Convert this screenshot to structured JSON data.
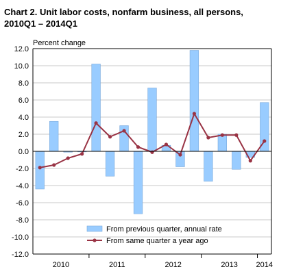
{
  "chart_data": {
    "type": "bar",
    "title_line1": "Chart  2. Unit labor costs, nonfarm business, all persons,",
    "title_line2": "2010Q1 – 2014Q1",
    "ylabel": "Percent change",
    "ylim": [
      -12,
      12
    ],
    "yticks": [
      "12.0",
      "10.0",
      "8.0",
      "6.0",
      "4.0",
      "2.0",
      "0.0",
      "-2.0",
      "-4.0",
      "-6.0",
      "-8.0",
      "-10.0",
      "-12.0"
    ],
    "ytick_values": [
      12,
      10,
      8,
      6,
      4,
      2,
      0,
      -2,
      -4,
      -6,
      -8,
      -10,
      -12
    ],
    "x": [
      "2010Q1",
      "2010Q2",
      "2010Q3",
      "2010Q4",
      "2011Q1",
      "2011Q2",
      "2011Q3",
      "2011Q4",
      "2012Q1",
      "2012Q2",
      "2012Q3",
      "2012Q4",
      "2013Q1",
      "2013Q2",
      "2013Q3",
      "2013Q4",
      "2014Q1"
    ],
    "year_labels": [
      {
        "label": "2010",
        "from": 0,
        "to": 3
      },
      {
        "label": "2011",
        "from": 4,
        "to": 7
      },
      {
        "label": "2012",
        "from": 8,
        "to": 11
      },
      {
        "label": "2013",
        "from": 12,
        "to": 15
      },
      {
        "label": "2014",
        "from": 16,
        "to": 16
      }
    ],
    "series": [
      {
        "name": "From previous quarter, annual rate",
        "kind": "bar",
        "color": "#99ccff",
        "values": [
          -4.4,
          3.5,
          -0.1,
          0.0,
          10.2,
          -2.9,
          3.0,
          -7.3,
          7.4,
          0.7,
          -1.8,
          11.8,
          -3.5,
          2.0,
          -2.1,
          -0.7,
          5.7
        ]
      },
      {
        "name": "From same quarter a year ago",
        "kind": "line",
        "color": "#993344",
        "values": [
          -1.9,
          -1.6,
          -0.8,
          -0.3,
          3.3,
          1.7,
          2.4,
          0.5,
          -0.1,
          0.8,
          -0.4,
          4.4,
          1.6,
          1.9,
          1.9,
          -1.1,
          1.2
        ]
      }
    ],
    "grid": true,
    "legend_position": "bottom"
  }
}
